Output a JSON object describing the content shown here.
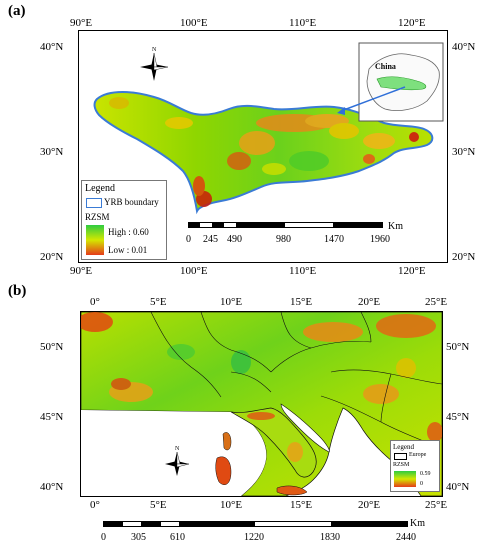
{
  "panel_a": {
    "label": "(a)",
    "top_ticks": [
      "90°E",
      "100°E",
      "110°E",
      "120°E"
    ],
    "bottom_ticks": [
      "90°E",
      "100°E",
      "110°E",
      "120°E"
    ],
    "left_ticks": [
      "40°N",
      "30°N",
      "20°N"
    ],
    "right_ticks": [
      "40°N",
      "30°N",
      "20°N"
    ],
    "inset_label": "China",
    "legend": {
      "title": "Legend",
      "boundary": "YRB boundary",
      "variable": "RZSM",
      "high": "High : 0.60",
      "low": "Low : 0.01"
    },
    "scalebar": {
      "labels": [
        "0",
        "245",
        "490",
        "980",
        "1470",
        "1960"
      ],
      "unit": "Km"
    },
    "north": "N"
  },
  "panel_b": {
    "label": "(b)",
    "top_ticks": [
      "0°",
      "5°E",
      "10°E",
      "15°E",
      "20°E",
      "25°E"
    ],
    "bottom_ticks": [
      "0°",
      "5°E",
      "10°E",
      "15°E",
      "20°E",
      "25°E"
    ],
    "left_ticks": [
      "50°N",
      "45°N",
      "40°N"
    ],
    "right_ticks": [
      "50°N",
      "45°N",
      "40°N"
    ],
    "legend": {
      "title": "Legend",
      "boundary": "Europe",
      "variable": "RZSM",
      "high": "0.59",
      "low": "0"
    },
    "scalebar": {
      "labels": [
        "0",
        "305",
        "610",
        "1220",
        "1830",
        "2440"
      ],
      "unit": "Km"
    },
    "north": "N"
  },
  "colors": {
    "high": "#2ecc40",
    "mid": "#d4e800",
    "low": "#e53b1a",
    "boundary": "#3a7bd5"
  }
}
